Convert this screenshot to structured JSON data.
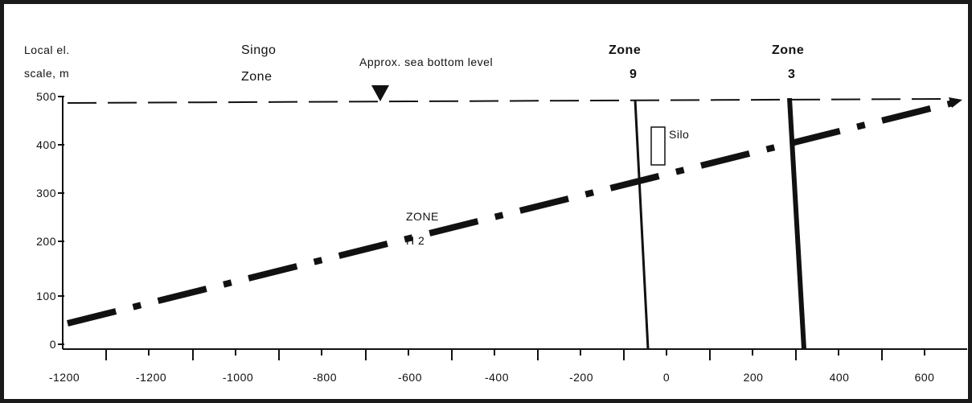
{
  "scale_label": {
    "line1": "Local el.",
    "line2": "scale, m"
  },
  "singo_zone": {
    "line1": "Singo",
    "line2": "Zone"
  },
  "sea_bottom": {
    "label": "Approx. sea bottom level"
  },
  "zone9": {
    "line1": "Zone",
    "line2": "9"
  },
  "zone3": {
    "line1": "Zone",
    "line2": "3"
  },
  "silo_label": "Silo",
  "zone_h2": {
    "line1": "ZONE",
    "line2": "H 2"
  },
  "y_axis": {
    "ticks": [
      "500",
      "400",
      "300",
      "200",
      "100",
      "0"
    ]
  },
  "x_axis": {
    "ticks": [
      "-1200",
      "-1200",
      "-1000",
      "-800",
      "-600",
      "-400",
      "-200",
      "0",
      "200",
      "400",
      "600"
    ]
  },
  "colors": {
    "ink": "#111111",
    "frame": "#1a1a1a"
  }
}
